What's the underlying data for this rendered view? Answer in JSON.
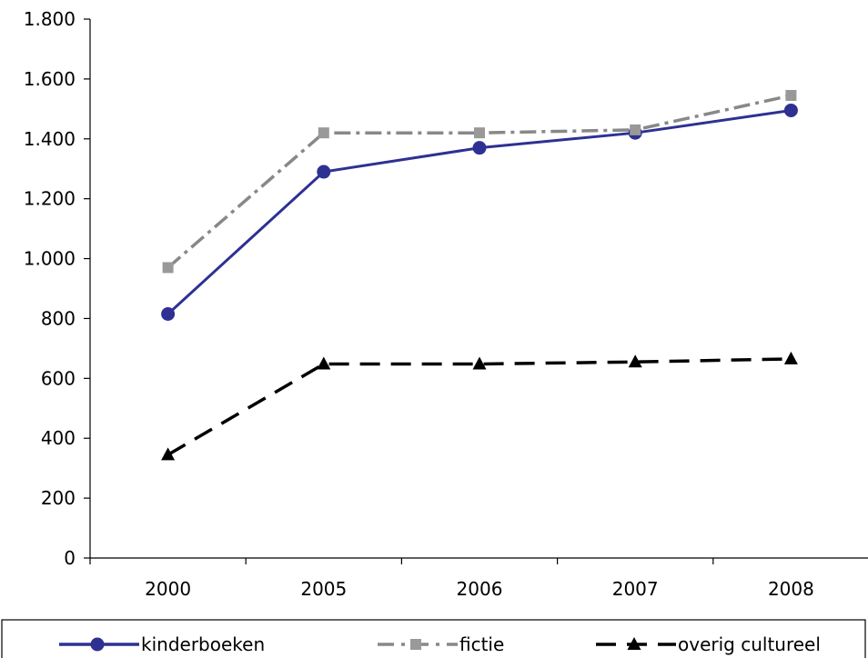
{
  "chart_data": {
    "type": "line",
    "categories": [
      "2000",
      "2005",
      "2006",
      "2007",
      "2008"
    ],
    "ylim": [
      0,
      1800
    ],
    "yticks": [
      0,
      200,
      400,
      600,
      800,
      1000,
      1200,
      1400,
      1600,
      1800
    ],
    "ytick_labels": [
      "0",
      "200",
      "400",
      "600",
      "800",
      "1.000",
      "1.200",
      "1.400",
      "1.600",
      "1.800"
    ],
    "grid": false,
    "legend_position": "bottom",
    "series": [
      {
        "name": "kinderboeken",
        "values": [
          815,
          1290,
          1370,
          1420,
          1495
        ],
        "color": "#2e3192",
        "marker": "circle",
        "line": "solid"
      },
      {
        "name": "fictie",
        "values": [
          970,
          1420,
          1420,
          1430,
          1545
        ],
        "color": "#888888",
        "marker": "square",
        "line": "dashdot"
      },
      {
        "name": "overig cultureel",
        "values": [
          345,
          648,
          648,
          655,
          665
        ],
        "color": "#000000",
        "marker": "triangle",
        "line": "dashed"
      }
    ]
  }
}
